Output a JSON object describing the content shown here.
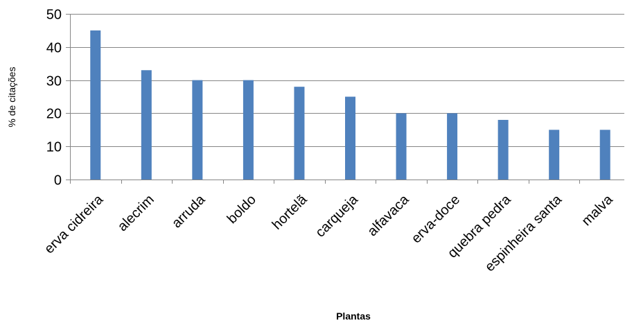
{
  "chart_data": {
    "type": "bar",
    "categories": [
      "erva cidreira",
      "alecrim",
      "arruda",
      "boldo",
      "hortelã",
      "carqueja",
      "alfavaca",
      "erva-doce",
      "quebra pedra",
      "espinheira santa",
      "malva"
    ],
    "values": [
      45,
      33,
      30,
      30,
      28,
      25,
      20,
      20,
      18,
      15,
      15
    ],
    "xlabel": "Plantas",
    "ylabel": "% de citações",
    "ylim": [
      0,
      50
    ],
    "yticks": [
      0,
      10,
      20,
      30,
      40,
      50
    ],
    "grid": true,
    "colors": {
      "bar": "#4F81BD",
      "grid": "#868686",
      "text": "#000000"
    }
  }
}
